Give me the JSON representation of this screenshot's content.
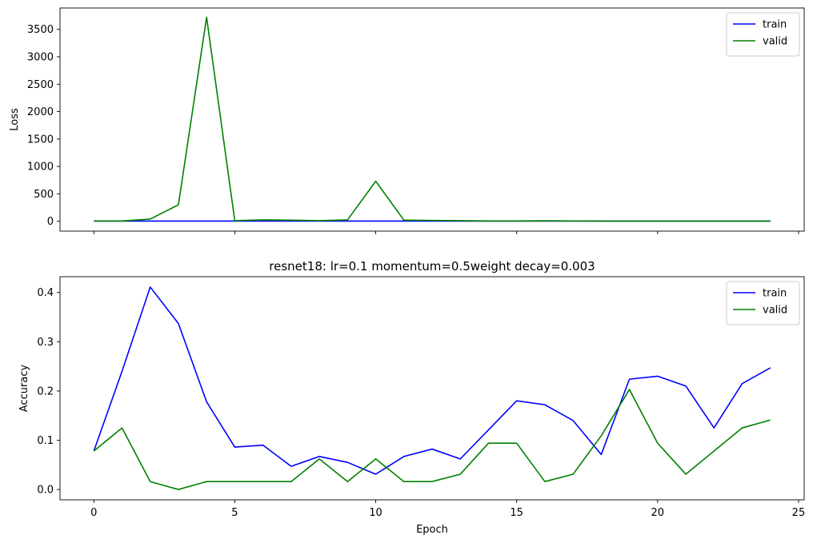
{
  "chart_data": [
    {
      "type": "line",
      "title": "",
      "xlabel": "",
      "ylabel": "Loss",
      "xlim": [
        -1.2,
        25.2
      ],
      "ylim": [
        -180,
        3890
      ],
      "x_ticks": [
        0,
        5,
        10,
        15,
        20,
        25
      ],
      "show_x_tick_labels": false,
      "y_ticks": [
        0,
        500,
        1000,
        1500,
        2000,
        2500,
        3000,
        3500
      ],
      "y_tick_labels": [
        "0",
        "500",
        "1000",
        "1500",
        "2000",
        "2500",
        "3000",
        "3500"
      ],
      "grid": false,
      "legend": "top-right",
      "x": [
        0,
        1,
        2,
        3,
        4,
        5,
        6,
        7,
        8,
        9,
        10,
        11,
        12,
        13,
        14,
        15,
        16,
        17,
        18,
        19,
        20,
        21,
        22,
        23,
        24
      ],
      "series": [
        {
          "name": "train",
          "color": "#0000ff",
          "values": [
            3,
            3,
            3,
            3,
            3,
            3,
            3,
            3,
            3,
            3,
            3,
            3,
            3,
            3,
            3,
            3,
            3,
            3,
            3,
            3,
            3,
            3,
            3,
            3,
            3
          ]
        },
        {
          "name": "valid",
          "color": "#008000",
          "values": [
            5,
            5,
            40,
            300,
            3720,
            10,
            25,
            20,
            10,
            25,
            730,
            20,
            15,
            10,
            5,
            5,
            8,
            6,
            4,
            3,
            3,
            3,
            3,
            3,
            3
          ]
        }
      ]
    },
    {
      "type": "line",
      "title": "resnet18: lr=0.1 momentum=0.5weight decay=0.003",
      "xlabel": "Epoch",
      "ylabel": "Accuracy",
      "xlim": [
        -1.2,
        25.2
      ],
      "ylim": [
        -0.021,
        0.432
      ],
      "x_ticks": [
        0,
        5,
        10,
        15,
        20,
        25
      ],
      "x_tick_labels": [
        "0",
        "5",
        "10",
        "15",
        "20",
        "25"
      ],
      "show_x_tick_labels": true,
      "y_ticks": [
        0.0,
        0.1,
        0.2,
        0.3,
        0.4
      ],
      "y_tick_labels": [
        "0.0",
        "0.1",
        "0.2",
        "0.3",
        "0.4"
      ],
      "grid": false,
      "legend": "top-right",
      "x": [
        0,
        1,
        2,
        3,
        4,
        5,
        6,
        7,
        8,
        9,
        10,
        11,
        12,
        13,
        14,
        15,
        16,
        17,
        18,
        19,
        20,
        21,
        22,
        23,
        24
      ],
      "series": [
        {
          "name": "train",
          "color": "#0000ff",
          "values": [
            0.078,
            0.24,
            0.411,
            0.337,
            0.178,
            0.086,
            0.09,
            0.047,
            0.067,
            0.055,
            0.031,
            0.067,
            0.082,
            0.062,
            0.121,
            0.18,
            0.172,
            0.14,
            0.071,
            0.224,
            0.23,
            0.21,
            0.125,
            0.215,
            0.247
          ]
        },
        {
          "name": "valid",
          "color": "#008000",
          "values": [
            0.078,
            0.125,
            0.016,
            0.0,
            0.016,
            0.016,
            0.016,
            0.016,
            0.062,
            0.016,
            0.062,
            0.016,
            0.016,
            0.031,
            0.094,
            0.094,
            0.016,
            0.031,
            0.109,
            0.203,
            0.094,
            0.031,
            0.078,
            0.125,
            0.141
          ]
        }
      ]
    }
  ]
}
